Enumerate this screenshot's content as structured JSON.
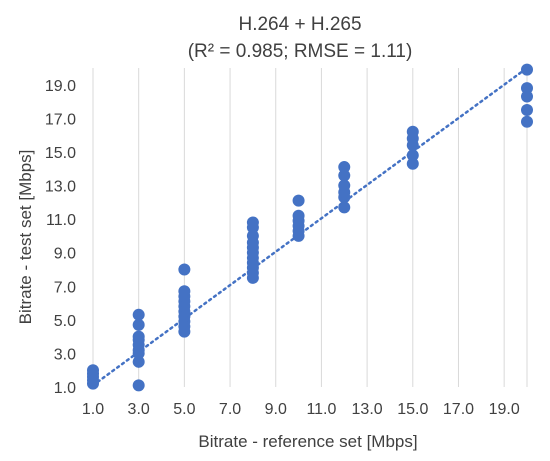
{
  "chart_data": {
    "type": "scatter",
    "title": "H.264 + H.265",
    "subtitle": "(R² = 0.985; RMSE = 1.11)",
    "xlabel": "Bitrate - reference set [Mbps]",
    "ylabel": "Bitrate - test set  [Mbps]",
    "xlim": [
      1,
      20
    ],
    "ylim": [
      1,
      20
    ],
    "x_ticks": [
      "1.0",
      "3.0",
      "5.0",
      "7.0",
      "9.0",
      "11.0",
      "13.0",
      "15.0",
      "17.0",
      "19.0"
    ],
    "y_ticks": [
      "1.0",
      "3.0",
      "5.0",
      "7.0",
      "9.0",
      "11.0",
      "13.0",
      "15.0",
      "17.0",
      "19.0"
    ],
    "grid": "vertical",
    "trendline": {
      "style": "dotted",
      "from": [
        1,
        1.1
      ],
      "to": [
        20,
        20
      ]
    },
    "color": "#4472c4",
    "points": [
      [
        1,
        1.2
      ],
      [
        1,
        1.4
      ],
      [
        1,
        1.6
      ],
      [
        1,
        1.8
      ],
      [
        1,
        2.0
      ],
      [
        3,
        1.1
      ],
      [
        3,
        2.5
      ],
      [
        3,
        3.0
      ],
      [
        3,
        3.2
      ],
      [
        3,
        3.5
      ],
      [
        3,
        3.8
      ],
      [
        3,
        4.0
      ],
      [
        3,
        4.7
      ],
      [
        3,
        5.3
      ],
      [
        5,
        4.3
      ],
      [
        5,
        4.6
      ],
      [
        5,
        4.9
      ],
      [
        5,
        5.2
      ],
      [
        5,
        5.5
      ],
      [
        5,
        5.8
      ],
      [
        5,
        6.1
      ],
      [
        5,
        6.4
      ],
      [
        5,
        6.7
      ],
      [
        5,
        8.0
      ],
      [
        8,
        7.5
      ],
      [
        8,
        7.8
      ],
      [
        8,
        8.1
      ],
      [
        8,
        8.4
      ],
      [
        8,
        8.7
      ],
      [
        8,
        9.0
      ],
      [
        8,
        9.3
      ],
      [
        8,
        9.6
      ],
      [
        8,
        10.0
      ],
      [
        8,
        10.5
      ],
      [
        8,
        10.8
      ],
      [
        10,
        10.0
      ],
      [
        10,
        10.3
      ],
      [
        10,
        10.6
      ],
      [
        10,
        10.9
      ],
      [
        10,
        11.2
      ],
      [
        10,
        12.1
      ],
      [
        12,
        11.7
      ],
      [
        12,
        12.3
      ],
      [
        12,
        12.6
      ],
      [
        12,
        13.0
      ],
      [
        12,
        13.6
      ],
      [
        12,
        14.1
      ],
      [
        15,
        14.3
      ],
      [
        15,
        14.8
      ],
      [
        15,
        15.4
      ],
      [
        15,
        15.8
      ],
      [
        15,
        16.2
      ],
      [
        20,
        16.8
      ],
      [
        20,
        17.5
      ],
      [
        20,
        18.3
      ],
      [
        20,
        18.8
      ],
      [
        20,
        19.9
      ]
    ]
  }
}
